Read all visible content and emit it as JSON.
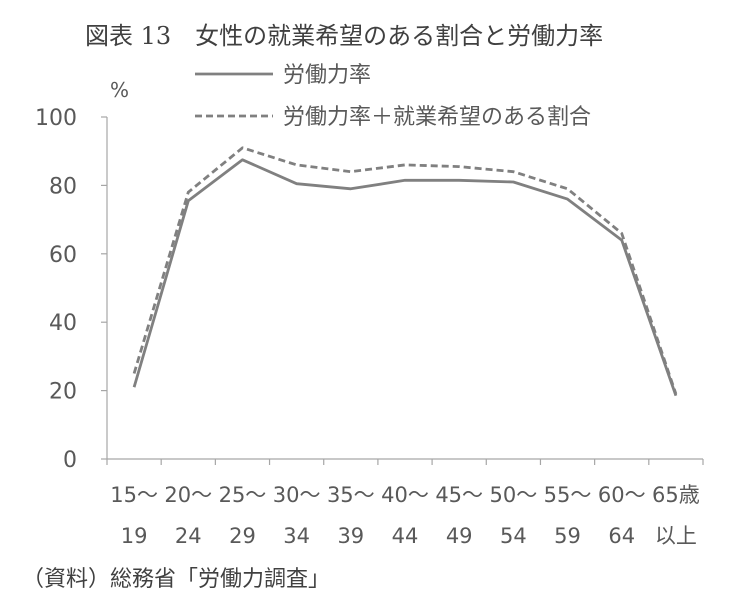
{
  "chart_data": {
    "type": "line",
    "title": "図表 13　女性の就業希望のある割合と労働力率",
    "ylabel": "%",
    "ylim": [
      0,
      100
    ],
    "yticks": [
      0,
      20,
      40,
      60,
      80,
      100
    ],
    "categories": [
      {
        "line1": "15～",
        "line2": "19"
      },
      {
        "line1": "20～",
        "line2": "24"
      },
      {
        "line1": "25～",
        "line2": "29"
      },
      {
        "line1": "30～",
        "line2": "34"
      },
      {
        "line1": "35～",
        "line2": "39"
      },
      {
        "line1": "40～",
        "line2": "44"
      },
      {
        "line1": "45～",
        "line2": "49"
      },
      {
        "line1": "50～",
        "line2": "54"
      },
      {
        "line1": "55～",
        "line2": "59"
      },
      {
        "line1": "60～",
        "line2": "64"
      },
      {
        "line1": "65歳",
        "line2": "以上"
      }
    ],
    "series": [
      {
        "name": "労働力率",
        "style": "solid",
        "color": "#808080",
        "values": [
          21,
          75.5,
          87.5,
          80.5,
          79,
          81.5,
          81.5,
          81,
          76,
          64,
          18.5
        ]
      },
      {
        "name": "労働力率＋就業希望のある割合",
        "style": "dashed",
        "color": "#808080",
        "values": [
          25,
          78,
          91,
          86,
          84,
          86,
          85.5,
          84,
          79,
          66,
          19
        ]
      }
    ],
    "grid": false,
    "legend_position": "top"
  },
  "source": "（資料）総務省「労働力調査」"
}
